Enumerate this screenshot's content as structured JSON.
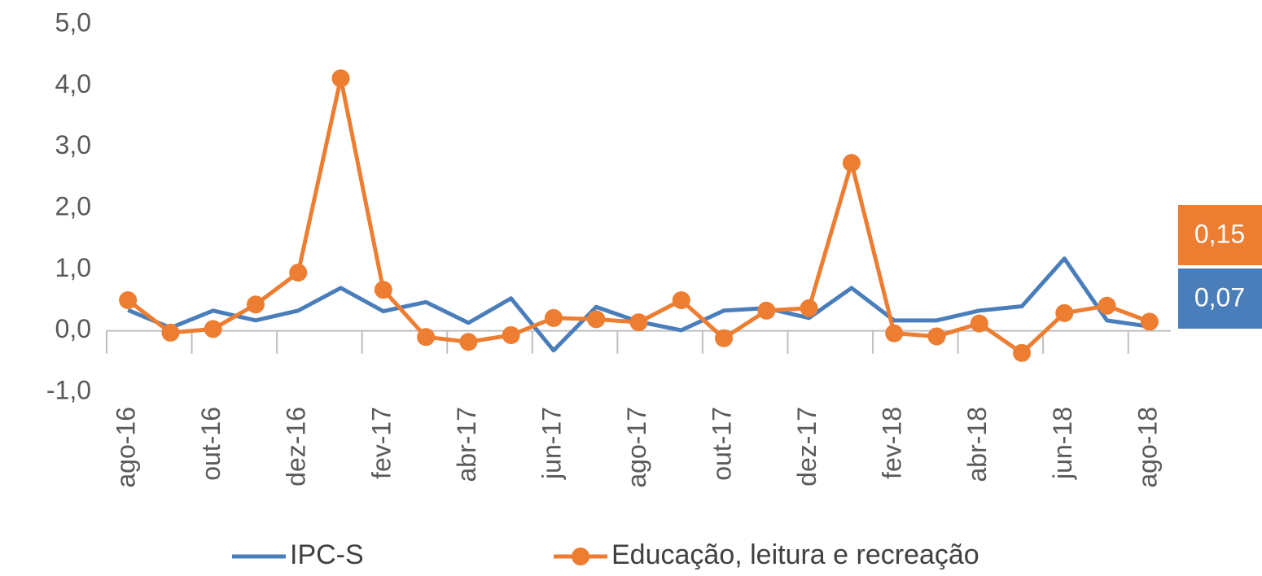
{
  "chart_data": {
    "type": "line",
    "categories": [
      "ago-16",
      null,
      "out-16",
      null,
      "dez-16",
      null,
      "fev-17",
      null,
      "abr-17",
      null,
      "jun-17",
      null,
      "ago-17",
      null,
      "out-17",
      null,
      "dez-17",
      null,
      "fev-18",
      null,
      "abr-18",
      null,
      "jun-18",
      null,
      "ago-18"
    ],
    "series": [
      {
        "name": "IPC-S",
        "color": "#4A7EBB",
        "markers": false,
        "values": [
          0.34,
          0.05,
          0.33,
          0.17,
          0.33,
          0.7,
          0.32,
          0.47,
          0.13,
          0.53,
          -0.32,
          0.39,
          0.15,
          0.01,
          0.33,
          0.37,
          0.21,
          0.7,
          0.17,
          0.17,
          0.33,
          0.4,
          1.18,
          0.17,
          0.07
        ],
        "value_labels": [
          null,
          null,
          null,
          null,
          null,
          null,
          null,
          null,
          null,
          null,
          null,
          null,
          null,
          null,
          null,
          null,
          null,
          null,
          null,
          null,
          null,
          null,
          null,
          null,
          "0,07"
        ]
      },
      {
        "name": "Educação, leitura e recreação",
        "color": "#ED7D31",
        "markers": true,
        "values": [
          0.5,
          -0.03,
          0.03,
          0.43,
          0.95,
          4.12,
          0.67,
          -0.1,
          -0.18,
          -0.07,
          0.21,
          0.19,
          0.14,
          0.5,
          -0.12,
          0.33,
          0.37,
          2.74,
          -0.04,
          -0.09,
          0.12,
          -0.36,
          0.29,
          0.41,
          0.15
        ],
        "value_labels": [
          null,
          null,
          null,
          null,
          null,
          null,
          null,
          null,
          null,
          null,
          null,
          null,
          null,
          null,
          null,
          null,
          null,
          null,
          null,
          null,
          null,
          null,
          null,
          null,
          "0,15"
        ]
      }
    ],
    "ylim": [
      -1,
      5
    ],
    "yticks": [
      {
        "value": -1,
        "label": "-1,0"
      },
      {
        "value": 0,
        "label": "0,0"
      },
      {
        "value": 1,
        "label": "1,0"
      },
      {
        "value": 2,
        "label": "2,0"
      },
      {
        "value": 3,
        "label": "3,0"
      },
      {
        "value": 4,
        "label": "4,0"
      },
      {
        "value": 5,
        "label": "5,0"
      }
    ],
    "grid": false,
    "legend": "bottom"
  }
}
